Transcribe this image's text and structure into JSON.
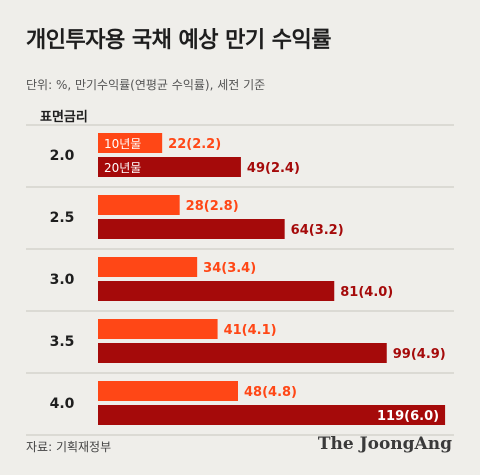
{
  "title": "개인투자용 국채 예상 만기 수익률",
  "subtitle": "단위: %, 만기수익률(연평균 수익률), 세전 기준",
  "column_header": "표면금리",
  "source": "자료: 기획재정부",
  "brand": "The JoongAng",
  "colors": {
    "ten_year": "#ff4716",
    "twenty_year": "#a50a0a",
    "divider": "#c7c5bf",
    "background": "#efeeea"
  },
  "chart_data": {
    "type": "bar",
    "orientation": "horizontal",
    "categories": [
      "2.0",
      "2.5",
      "3.0",
      "3.5",
      "4.0"
    ],
    "series": [
      {
        "name": "10년물",
        "values": [
          22,
          28,
          34,
          41,
          48
        ],
        "labels": [
          "22(2.2)",
          "28(2.8)",
          "34(3.4)",
          "41(4.1)",
          "48(4.8)"
        ]
      },
      {
        "name": "20년물",
        "values": [
          49,
          64,
          81,
          99,
          119
        ],
        "labels": [
          "49(2.4)",
          "64(3.2)",
          "81(4.0)",
          "99(4.9)",
          "119(6.0)"
        ]
      }
    ],
    "xlim": [
      0,
      120
    ]
  }
}
